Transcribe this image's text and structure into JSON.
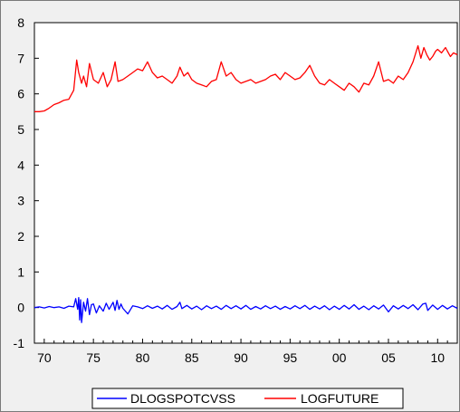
{
  "chart_data": {
    "type": "line",
    "title": "",
    "xlabel": "",
    "ylabel": "",
    "xlim": [
      1969.0,
      2012.0
    ],
    "ylim": [
      -1,
      8
    ],
    "x_ticks": [
      1970,
      1975,
      1980,
      1985,
      1990,
      1995,
      2000,
      2005,
      2010
    ],
    "x_tick_labels": [
      "70",
      "75",
      "80",
      "85",
      "90",
      "95",
      "00",
      "05",
      "10"
    ],
    "y_ticks": [
      -1,
      0,
      1,
      2,
      3,
      4,
      5,
      6,
      7,
      8
    ],
    "y_tick_labels": [
      "-1",
      "0",
      "1",
      "2",
      "3",
      "4",
      "5",
      "6",
      "7",
      "8"
    ],
    "grid": false,
    "legend_placement": "bottom",
    "series": [
      {
        "name": "DLOGSPOTCVSS",
        "color": "#0000ff",
        "x": [
          1969.0,
          1969.5,
          1970.0,
          1970.5,
          1971.0,
          1971.5,
          1972.0,
          1972.5,
          1973.0,
          1973.2,
          1973.4,
          1973.5,
          1973.6,
          1973.7,
          1973.8,
          1974.0,
          1974.2,
          1974.4,
          1974.6,
          1974.8,
          1975.0,
          1975.3,
          1975.6,
          1976.0,
          1976.3,
          1976.6,
          1977.0,
          1977.2,
          1977.4,
          1977.6,
          1977.8,
          1978.0,
          1978.5,
          1979.0,
          1979.5,
          1980.0,
          1980.5,
          1981.0,
          1981.5,
          1982.0,
          1982.5,
          1983.0,
          1983.5,
          1983.8,
          1984.0,
          1984.5,
          1985.0,
          1985.5,
          1986.0,
          1986.5,
          1987.0,
          1987.5,
          1988.0,
          1988.5,
          1989.0,
          1989.5,
          1990.0,
          1990.5,
          1991.0,
          1991.5,
          1992.0,
          1992.5,
          1993.0,
          1993.5,
          1994.0,
          1994.5,
          1995.0,
          1995.5,
          1996.0,
          1996.5,
          1997.0,
          1997.5,
          1998.0,
          1998.5,
          1999.0,
          1999.5,
          2000.0,
          2000.5,
          2001.0,
          2001.5,
          2002.0,
          2002.5,
          2003.0,
          2003.5,
          2004.0,
          2004.5,
          2005.0,
          2005.5,
          2006.0,
          2006.5,
          2007.0,
          2007.5,
          2008.0,
          2008.5,
          2008.8,
          2009.0,
          2009.5,
          2010.0,
          2010.5,
          2011.0,
          2011.5,
          2012.0
        ],
        "values": [
          0.0,
          0.02,
          -0.01,
          0.03,
          0.0,
          0.02,
          -0.02,
          0.04,
          0.02,
          0.25,
          -0.05,
          0.28,
          -0.35,
          0.22,
          -0.42,
          0.15,
          -0.1,
          0.25,
          -0.2,
          0.08,
          0.1,
          -0.15,
          0.05,
          -0.1,
          0.12,
          -0.05,
          0.15,
          -0.08,
          0.2,
          -0.05,
          0.1,
          -0.02,
          -0.18,
          0.05,
          0.02,
          -0.03,
          0.05,
          -0.02,
          0.04,
          -0.04,
          0.06,
          -0.05,
          0.03,
          0.15,
          -0.03,
          0.06,
          -0.04,
          0.04,
          -0.06,
          0.05,
          -0.03,
          0.04,
          -0.05,
          0.06,
          -0.03,
          0.05,
          -0.04,
          0.06,
          -0.05,
          0.03,
          -0.04,
          0.05,
          -0.03,
          0.04,
          -0.05,
          0.03,
          -0.04,
          0.05,
          -0.03,
          0.06,
          -0.05,
          0.04,
          -0.04,
          0.05,
          -0.06,
          0.04,
          -0.05,
          0.06,
          -0.04,
          0.08,
          -0.05,
          0.04,
          -0.06,
          0.05,
          -0.04,
          0.07,
          -0.12,
          0.05,
          -0.04,
          0.06,
          -0.03,
          0.08,
          -0.06,
          0.1,
          0.12,
          -0.08,
          0.07,
          -0.05,
          0.06,
          -0.04,
          0.05,
          -0.02
        ]
      },
      {
        "name": "LOGFUTURE",
        "color": "#ff0000",
        "x": [
          1969.0,
          1969.5,
          1970.0,
          1970.5,
          1971.0,
          1971.5,
          1972.0,
          1972.5,
          1973.0,
          1973.3,
          1973.5,
          1973.8,
          1974.0,
          1974.3,
          1974.6,
          1975.0,
          1975.5,
          1976.0,
          1976.4,
          1976.8,
          1977.2,
          1977.5,
          1978.0,
          1978.5,
          1979.0,
          1979.5,
          1980.0,
          1980.5,
          1981.0,
          1981.5,
          1982.0,
          1982.5,
          1983.0,
          1983.5,
          1983.8,
          1984.2,
          1984.6,
          1985.0,
          1985.5,
          1986.0,
          1986.5,
          1987.0,
          1987.5,
          1988.0,
          1988.5,
          1989.0,
          1989.5,
          1990.0,
          1990.5,
          1991.0,
          1991.5,
          1992.0,
          1992.5,
          1993.0,
          1993.5,
          1994.0,
          1994.5,
          1995.0,
          1995.5,
          1996.0,
          1996.5,
          1997.0,
          1997.5,
          1998.0,
          1998.5,
          1999.0,
          1999.5,
          2000.0,
          2000.5,
          2001.0,
          2001.5,
          2002.0,
          2002.5,
          2003.0,
          2003.5,
          2004.0,
          2004.5,
          2005.0,
          2005.5,
          2006.0,
          2006.5,
          2007.0,
          2007.5,
          2008.0,
          2008.3,
          2008.6,
          2008.9,
          2009.2,
          2009.5,
          2009.8,
          2010.0,
          2010.4,
          2010.8,
          2011.0,
          2011.3,
          2011.6,
          2012.0
        ],
        "values": [
          5.5,
          5.5,
          5.52,
          5.6,
          5.7,
          5.75,
          5.82,
          5.85,
          6.1,
          6.95,
          6.6,
          6.3,
          6.5,
          6.2,
          6.85,
          6.4,
          6.3,
          6.6,
          6.2,
          6.4,
          6.9,
          6.35,
          6.4,
          6.5,
          6.6,
          6.7,
          6.65,
          6.9,
          6.6,
          6.45,
          6.5,
          6.4,
          6.3,
          6.5,
          6.75,
          6.5,
          6.6,
          6.4,
          6.3,
          6.25,
          6.2,
          6.35,
          6.4,
          6.9,
          6.5,
          6.6,
          6.4,
          6.3,
          6.35,
          6.4,
          6.3,
          6.35,
          6.4,
          6.5,
          6.55,
          6.4,
          6.6,
          6.5,
          6.4,
          6.45,
          6.6,
          6.8,
          6.5,
          6.3,
          6.25,
          6.4,
          6.3,
          6.2,
          6.1,
          6.3,
          6.2,
          6.05,
          6.3,
          6.25,
          6.5,
          6.9,
          6.35,
          6.4,
          6.3,
          6.5,
          6.4,
          6.6,
          6.9,
          7.35,
          7.0,
          7.3,
          7.1,
          6.95,
          7.05,
          7.2,
          7.25,
          7.15,
          7.3,
          7.2,
          7.05,
          7.15,
          7.1
        ]
      }
    ]
  }
}
